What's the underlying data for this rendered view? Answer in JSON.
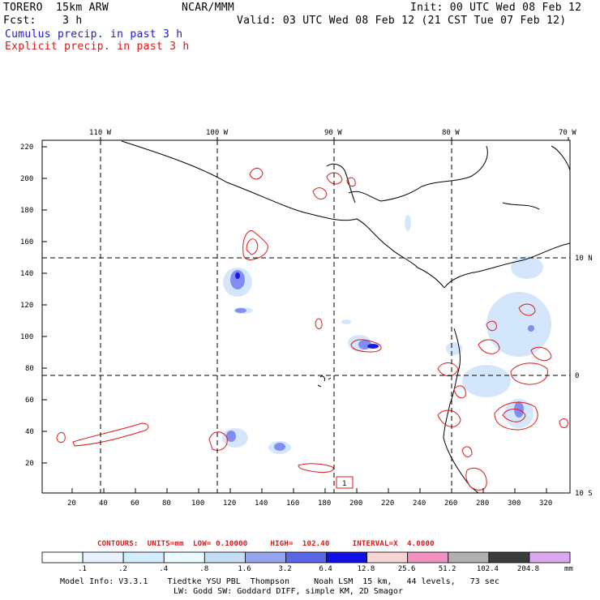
{
  "header": {
    "model": "TORERO  15km ARW",
    "org": "NCAR/MMM",
    "init": "Init: 00 UTC Wed 08 Feb 12",
    "fcst": "Fcst:    3 h",
    "valid": "Valid: 03 UTC Wed 08 Feb 12 (21 CST Tue 07 Feb 12)",
    "cumulus": "Cumulus precip. in past 3 h",
    "explicit": "Explicit precip. in past 3 h"
  },
  "map": {
    "lon_labels": [
      "110 W",
      "100 W",
      "90 W",
      "80 W",
      "70 W"
    ],
    "lat_labels": [
      "10 N",
      "0",
      "10 S"
    ],
    "y_ticks": [
      "220",
      "200",
      "180",
      "160",
      "140",
      "120",
      "100",
      "80",
      "60",
      "40",
      "20"
    ],
    "x_ticks": [
      "20",
      "40",
      "60",
      "80",
      "100",
      "120",
      "140",
      "160",
      "180",
      "200",
      "220",
      "240",
      "260",
      "280",
      "300",
      "320"
    ],
    "box_label": "1"
  },
  "contours": {
    "label": "CONTOURS:  UNITS=mm  LOW= 0.10000     HIGH=  102.40     INTERVAL=X  4.0000"
  },
  "colorbar": {
    "colors": [
      "#ffffff",
      "#e8f3ff",
      "#d4ecff",
      "#eafaff",
      "#c5dcf6",
      "#96a4ef",
      "#5a66e6",
      "#1010e6",
      "#f7d4d4",
      "#f091c0",
      "#b0b0b0",
      "#3c3c3c",
      "#d9a8ee"
    ],
    "labels": [
      ".1",
      ".2",
      ".4",
      ".8",
      "1.6",
      "3.2",
      "6.4",
      "12.8",
      "25.6",
      "51.2",
      "102.4",
      "204.8"
    ],
    "unit": "mm"
  },
  "model_info": {
    "line1": "Model Info: V3.3.1    Tiedtke YSU PBL  Thompson     Noah LSM  15 km,   44 levels,   73 sec",
    "line2": "LW: Godd SW: Goddard DIFF, simple KM, 2D Smagor"
  }
}
